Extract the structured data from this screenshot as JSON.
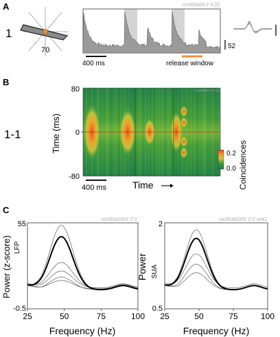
{
  "panelA": {
    "letter": "A",
    "row_label": "1",
    "orientation_value": "70",
    "recording_id": "nic083a03 2-4 [2]",
    "scale_value": "52",
    "time_scale_label": "400 ms",
    "release_label": "release window",
    "release_color": "#e8913a",
    "bar_fill_color": "#9a9a9a",
    "highlight_color": "#d4d4d4"
  },
  "panelB": {
    "letter": "B",
    "row_label": "1-1",
    "recording_id": "nic083a03 2-4 [2]",
    "ylabel": "Time (ms)",
    "yticks": [
      "80",
      "0",
      "-80"
    ],
    "xlabel": "Time",
    "time_scale_label": "400 ms",
    "colorbar_label": "Coincidences",
    "colorbar_ticks": [
      "0.2",
      "0.0"
    ],
    "colormap": [
      "#1a7a4a",
      "#2f9a3a",
      "#9ac23a",
      "#e8c83a",
      "#f0902a",
      "#e04a1a"
    ]
  },
  "panelC": {
    "letter": "C",
    "left": {
      "title": "nic063a0302 2*2",
      "ylabel": "Power (z-score)",
      "sublabel": "LFP",
      "yticks": [
        "55",
        "-0.5"
      ],
      "xlabel": "Frequency (Hz)",
      "xticks": [
        "25",
        "50",
        "75",
        "100"
      ]
    },
    "right": {
      "title": "nic063a0302 2*2 unit1",
      "ylabel": "Power",
      "sublabel": "SUA",
      "yticks": [
        "2",
        "0.5"
      ],
      "xlabel": "Frequency (Hz)",
      "xticks": [
        "25",
        "50",
        "75",
        "100"
      ]
    }
  }
}
